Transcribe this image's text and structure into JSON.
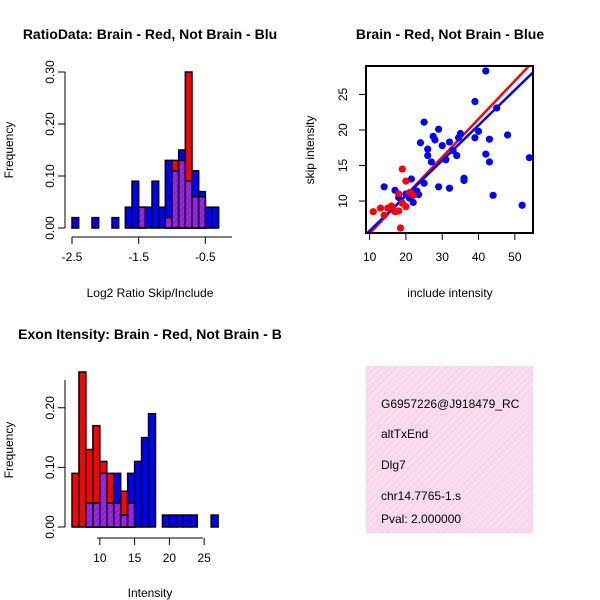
{
  "colors": {
    "red": "#ff0000",
    "blue": "#0000ff",
    "purple": "#a020f0",
    "info_bg": "#f8dcee",
    "pval": "#8b0000"
  },
  "chart_data": [
    {
      "id": "ratio-hist",
      "type": "bar",
      "title": "RatioData: Brain - Red, Not Brain - Blu",
      "xlabel": "Log2 Ratio Skip/Include",
      "ylabel": "Frequency",
      "xlim": [
        -2.5,
        -0.1
      ],
      "ylim": [
        0,
        0.3
      ],
      "xticks": [
        "-2.5",
        "-1.5",
        "-0.5"
      ],
      "yticks": [
        "0.00",
        "0.10",
        "0.20",
        "0.30"
      ],
      "bin_width": 0.1,
      "bin_start": -2.5,
      "red": [
        0,
        0,
        0,
        0,
        0,
        0,
        0,
        0,
        0,
        0,
        0.04,
        0,
        0,
        0,
        0.02,
        0.13,
        0.13,
        0.3,
        0.06,
        0.06,
        0,
        0,
        0,
        0
      ],
      "blue": [
        0.02,
        0,
        0,
        0.02,
        0,
        0,
        0.02,
        0,
        0.04,
        0.09,
        0.04,
        0.04,
        0.09,
        0.04,
        0.13,
        0.11,
        0.15,
        0.09,
        0.11,
        0.07,
        0.04,
        0.04,
        0,
        0
      ]
    },
    {
      "id": "scatter",
      "type": "scatter",
      "title": "Brain - Red, Not Brain - Blue",
      "xlabel": "include intensity",
      "ylabel": "skip intensity",
      "xlim": [
        9,
        55
      ],
      "ylim": [
        5.5,
        29
      ],
      "xticks": [
        10,
        20,
        30,
        40,
        50
      ],
      "yticks": [
        10,
        15,
        20,
        25
      ],
      "red_points": [
        [
          11,
          8.5
        ],
        [
          13,
          9
        ],
        [
          14,
          8
        ],
        [
          15,
          9
        ],
        [
          16,
          9.3
        ],
        [
          17,
          8.5
        ],
        [
          18,
          11
        ],
        [
          18,
          8.6
        ],
        [
          19,
          14.5
        ],
        [
          18.5,
          6.2
        ],
        [
          20,
          12.8
        ],
        [
          21,
          11.2
        ],
        [
          22,
          10.8
        ],
        [
          20,
          9.2
        ],
        [
          19,
          9.7
        ]
      ],
      "blue_points": [
        [
          14,
          12
        ],
        [
          17,
          11.5
        ],
        [
          18,
          10.5
        ],
        [
          20,
          11
        ],
        [
          21,
          10.4
        ],
        [
          21.5,
          13.1
        ],
        [
          22,
          9.8
        ],
        [
          23,
          11.4
        ],
        [
          23.5,
          10.9
        ],
        [
          24,
          18.2
        ],
        [
          25,
          12.5
        ],
        [
          26,
          17.3
        ],
        [
          27,
          15.5
        ],
        [
          27.5,
          19.1
        ],
        [
          28,
          18.6
        ],
        [
          29,
          20.1
        ],
        [
          30,
          17.8
        ],
        [
          31,
          15.8
        ],
        [
          32,
          18.3
        ],
        [
          33,
          17.1
        ],
        [
          34,
          16.4
        ],
        [
          34.5,
          18.9
        ],
        [
          35,
          19.5
        ],
        [
          36,
          13.2
        ],
        [
          29,
          12
        ],
        [
          32,
          11.8
        ],
        [
          39,
          18.9
        ],
        [
          40,
          19.8
        ],
        [
          42,
          16.6
        ],
        [
          43,
          15.5
        ],
        [
          43,
          18.7
        ],
        [
          44,
          10.8
        ],
        [
          45,
          23.1
        ],
        [
          42,
          28.3
        ],
        [
          39,
          24
        ],
        [
          48,
          19.3
        ],
        [
          52,
          9.4
        ],
        [
          54,
          16.1
        ],
        [
          36,
          12.9
        ],
        [
          25,
          21.1
        ],
        [
          26,
          16.4
        ]
      ],
      "red_line": {
        "from": [
          9,
          4.9
        ],
        "to": [
          55,
          29.6
        ]
      },
      "blue_line": {
        "from": [
          9,
          5.3
        ],
        "to": [
          55,
          28.1
        ]
      }
    },
    {
      "id": "intensity-hist",
      "type": "bar",
      "title": "Exon Itensity: Brain - Red, Not Brain - B",
      "xlabel": "Intensity",
      "ylabel": "Frequency",
      "xlim": [
        6,
        29
      ],
      "ylim": [
        0,
        0.26
      ],
      "xticks": [
        "10",
        "15",
        "20",
        "25"
      ],
      "yticks": [
        "0.00",
        "0.10",
        "0.20"
      ],
      "bin_width": 1,
      "bin_start": 6,
      "red": [
        0.09,
        0.26,
        0.13,
        0.17,
        0.11,
        0.09,
        0.04,
        0.06,
        0.04,
        0,
        0,
        0,
        0,
        0,
        0,
        0,
        0,
        0,
        0,
        0,
        0,
        0,
        0
      ],
      "blue": [
        0,
        0,
        0.04,
        0.04,
        0.09,
        0.04,
        0.09,
        0.02,
        0.09,
        0.11,
        0.15,
        0.19,
        0,
        0.02,
        0.02,
        0.02,
        0.02,
        0.02,
        0,
        0,
        0.02,
        0,
        0
      ]
    }
  ],
  "info_box": {
    "probe": "G6957226@J918479_RC",
    "event": "altTxEnd",
    "gene": "Dlg7",
    "locus": "chr14.7765-1.s",
    "pval": "Pval: 2.000000"
  }
}
